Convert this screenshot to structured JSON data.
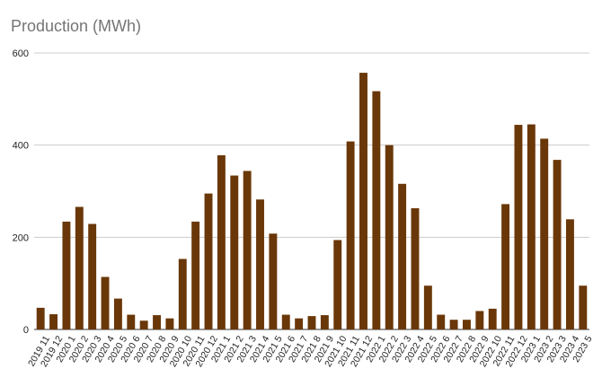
{
  "chart_data": {
    "type": "bar",
    "title": "Production (MWh)",
    "xlabel": "",
    "ylabel": "",
    "ylim": [
      0,
      600
    ],
    "yticks": [
      0,
      200,
      400,
      600
    ],
    "grid": true,
    "bar_color": "#6a3708",
    "categories": [
      "2019 11",
      "2019 12",
      "2020 1",
      "2020 2",
      "2020 3",
      "2020 4",
      "2020 5",
      "2020 6",
      "2020 7",
      "2020 8",
      "2020 9",
      "2020 10",
      "2020 11",
      "2020 12",
      "2021 1",
      "2021 2",
      "2021 3",
      "2021 4",
      "2021 5",
      "2021 6",
      "2021 7",
      "2021 8",
      "2021 9",
      "2021 10",
      "2021 11",
      "2021 12",
      "2022 1",
      "2022 2",
      "2022 3",
      "2022 4",
      "2022 5",
      "2022 6",
      "2022 7",
      "2022 8",
      "2022 9",
      "2022 10",
      "2022 11",
      "2022 12",
      "2023 1",
      "2023 2",
      "2023 3",
      "2023 4",
      "2023 5"
    ],
    "values": [
      47,
      33,
      234,
      266,
      229,
      114,
      67,
      32,
      19,
      31,
      24,
      153,
      234,
      295,
      378,
      334,
      344,
      282,
      208,
      32,
      24,
      29,
      31,
      194,
      408,
      557,
      517,
      400,
      316,
      263,
      95,
      32,
      21,
      21,
      40,
      45,
      272,
      444,
      445,
      414,
      368,
      239,
      95
    ]
  }
}
